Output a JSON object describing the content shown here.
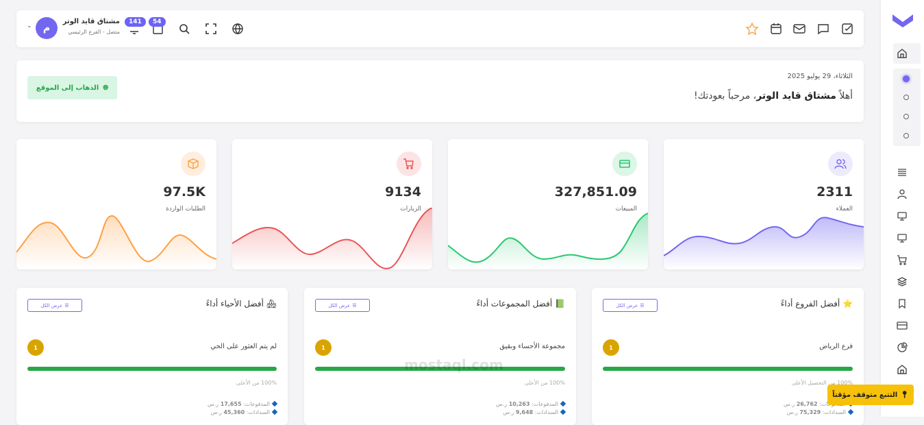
{
  "header": {
    "user_name": "مشتاق قايد الوتر",
    "user_status": "متصل - الفرع الرئيسي",
    "avatar_letter": "م",
    "notifications_count": "141",
    "messages_count": "54"
  },
  "welcome": {
    "date": "الثلاثاء، 29 يوليو 2025",
    "greeting_prefix": "أهلاً",
    "greeting_name": "مشتاق قايد الوتر",
    "greeting_suffix": "، مرحباً بعودتك!",
    "visit_site": "الذهاب إلى الموقع"
  },
  "stats": [
    {
      "value": "2311",
      "label": "العملاء",
      "color": "#7367f0",
      "icon": "users-icon"
    },
    {
      "value": "327,851.09",
      "label": "المبيعات",
      "color": "#28c76f",
      "icon": "credit-card-icon"
    },
    {
      "value": "9134",
      "label": "الزيارات",
      "color": "#ea5455",
      "icon": "cart-icon"
    },
    {
      "value": "97.5K",
      "label": "الطلبات الواردة",
      "color": "#ff9f43",
      "icon": "box-icon"
    }
  ],
  "performance": [
    {
      "title": "أفضل الفروع أداءً",
      "emoji": "⭐",
      "view_all": "عرض الكل",
      "rank": "1",
      "name": "فرع الرياض",
      "progress": 100,
      "pct_text": "100% من التحصيل الأعلى",
      "payments_label": "المدفوعات:",
      "payments": "26,762",
      "settlements_label": "السدادات:",
      "settlements": "75,329",
      "currency": "ر.س"
    },
    {
      "title": "أفضل المجموعات أداءً",
      "emoji": "📗",
      "view_all": "عرض الكل",
      "rank": "1",
      "name": "مجموعة الأحساء وبقيق",
      "progress": 100,
      "pct_text": "100% من الأعلى",
      "payments_label": "المدفوعات:",
      "payments": "10,263",
      "settlements_label": "السدادات:",
      "settlements": "9,648",
      "currency": "ر.س"
    },
    {
      "title": "أفضل الأحياء أداءً",
      "emoji": "🏘",
      "view_all": "عرض الكل",
      "rank": "1",
      "name": "لم يتم العثور على الحي",
      "progress": 100,
      "pct_text": "100% من الأعلى",
      "payments_label": "المدفوعات:",
      "payments": "17,655",
      "settlements_label": "السدادات:",
      "settlements": "45,360",
      "currency": "ر.س"
    }
  ],
  "tracking": "التتبع متوقف مؤقتاً",
  "watermark": "mostaql.com",
  "accent": "#7367f0"
}
